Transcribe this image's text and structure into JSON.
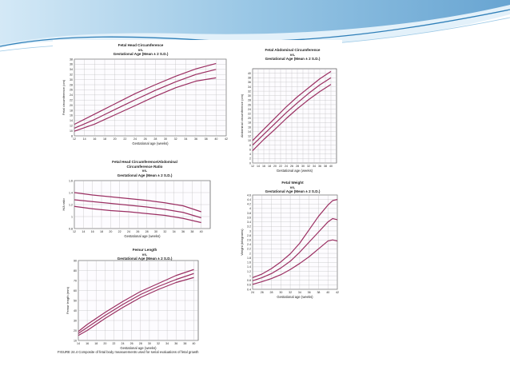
{
  "caption": "FIGURE 24.4 Composite of fetal body measurements used for serial evaluations of fetal growth",
  "chart_data": [
    {
      "id": "hc",
      "type": "line",
      "title": "Fetal Head Circumference\nvs.\nGestational Age (Mean ± 2 S.D.)",
      "xlabel": "Gestational age (weeks)",
      "ylabel": "Fetal circumference (cm)",
      "xlim": [
        12,
        42
      ],
      "ylim": [
        8,
        38
      ],
      "xticks": [
        12,
        14,
        16,
        18,
        20,
        22,
        24,
        26,
        28,
        30,
        32,
        34,
        36,
        38,
        40,
        42
      ],
      "yticks": [
        8,
        10,
        12,
        14,
        16,
        18,
        20,
        22,
        24,
        26,
        28,
        30,
        32,
        34,
        36,
        38
      ],
      "grid": true,
      "line_color": "#9b2f62",
      "series": [
        {
          "x": [
            12,
            16,
            20,
            24,
            28,
            32,
            36,
            40
          ],
          "values": [
            12.5,
            16.5,
            20.5,
            24.5,
            28.0,
            31.3,
            34.2,
            36.3
          ]
        },
        {
          "x": [
            12,
            16,
            20,
            24,
            28,
            32,
            36,
            40
          ],
          "values": [
            11.0,
            14.4,
            18.3,
            22.1,
            25.8,
            29.1,
            32.0,
            34.0
          ]
        },
        {
          "x": [
            12,
            16,
            20,
            24,
            28,
            32,
            36,
            40
          ],
          "values": [
            9.8,
            12.6,
            16.2,
            19.8,
            23.5,
            26.8,
            29.4,
            30.7
          ]
        }
      ]
    },
    {
      "id": "ac",
      "type": "line",
      "title": "Fetal Abdominal Circumference\nvs.\nGestational Age (Mean ± 2 S.D.)",
      "xlabel": "Gestational age (weeks)",
      "ylabel": "Abdominal circumference (cm)",
      "xlim": [
        12,
        42
      ],
      "ylim": [
        0,
        42
      ],
      "xticks": [
        12,
        14,
        16,
        18,
        20,
        22,
        24,
        26,
        28,
        30,
        32,
        34,
        36,
        38,
        40
      ],
      "yticks": [
        0,
        2,
        4,
        6,
        8,
        10,
        12,
        14,
        16,
        18,
        20,
        22,
        24,
        26,
        28,
        30,
        32,
        34,
        36,
        38,
        40
      ],
      "grid": true,
      "line_color": "#9b2f62",
      "series": [
        {
          "x": [
            12,
            16,
            20,
            24,
            28,
            32,
            36,
            40
          ],
          "values": [
            10.0,
            15.0,
            20.0,
            25.0,
            29.5,
            33.5,
            37.5,
            40.8
          ]
        },
        {
          "x": [
            12,
            16,
            20,
            24,
            28,
            32,
            36,
            40
          ],
          "values": [
            8.0,
            12.8,
            17.6,
            22.4,
            26.8,
            31.0,
            34.8,
            38.0
          ]
        },
        {
          "x": [
            12,
            16,
            20,
            24,
            28,
            32,
            36,
            40
          ],
          "values": [
            5.5,
            10.5,
            15.0,
            19.8,
            24.2,
            28.2,
            31.8,
            35.0
          ]
        }
      ]
    },
    {
      "id": "ratio",
      "type": "line",
      "title": "Fetal Head Circumference/Abdominal\nCircumference Ratio\nvs.\nGestational Age (Mean ± 2 S.D.)",
      "xlabel": "Gestational age (weeks)",
      "ylabel": "H/A ratio",
      "xlim": [
        12,
        42
      ],
      "ylim": [
        0.8,
        1.6
      ],
      "xticks": [
        12,
        14,
        16,
        18,
        20,
        22,
        24,
        26,
        28,
        30,
        32,
        34,
        36,
        38,
        40
      ],
      "yticks": [
        0.8,
        1.0,
        1.2,
        1.4,
        1.6
      ],
      "grid": true,
      "line_color": "#9b2f62",
      "series": [
        {
          "x": [
            12,
            16,
            20,
            24,
            28,
            32,
            36,
            40
          ],
          "values": [
            1.4,
            1.36,
            1.33,
            1.3,
            1.27,
            1.23,
            1.18,
            1.08
          ]
        },
        {
          "x": [
            12,
            16,
            20,
            24,
            28,
            32,
            36,
            40
          ],
          "values": [
            1.28,
            1.25,
            1.22,
            1.19,
            1.16,
            1.12,
            1.07,
            0.98
          ]
        },
        {
          "x": [
            12,
            16,
            20,
            24,
            28,
            32,
            36,
            40
          ],
          "values": [
            1.17,
            1.13,
            1.1,
            1.08,
            1.05,
            1.02,
            0.97,
            0.9
          ]
        }
      ]
    },
    {
      "id": "weight",
      "type": "line",
      "title": "Fetal Weight\nvs.\nGestational Age (Mean ± 2 S.D.)",
      "xlabel": "Gestational age (weeks)",
      "ylabel": "Weight (kilograms)",
      "xlim": [
        24,
        42
      ],
      "ylim": [
        0.4,
        4.6
      ],
      "xticks": [
        24,
        26,
        28,
        30,
        32,
        34,
        36,
        38,
        40,
        42
      ],
      "yticks": [
        0.4,
        0.6,
        0.8,
        1.0,
        1.2,
        1.4,
        1.6,
        1.8,
        2.0,
        2.2,
        2.4,
        2.6,
        2.8,
        3.0,
        3.2,
        3.4,
        3.6,
        3.8,
        4.0,
        4.2,
        4.4,
        4.6
      ],
      "grid": true,
      "line_color": "#9b2f62",
      "series": [
        {
          "x": [
            24,
            26,
            28,
            30,
            32,
            34,
            36,
            38,
            40,
            41,
            42
          ],
          "values": [
            0.92,
            1.08,
            1.32,
            1.62,
            1.98,
            2.45,
            3.05,
            3.65,
            4.15,
            4.35,
            4.4
          ]
        },
        {
          "x": [
            24,
            26,
            28,
            30,
            32,
            34,
            36,
            38,
            40,
            41,
            42
          ],
          "values": [
            0.78,
            0.92,
            1.1,
            1.35,
            1.65,
            2.05,
            2.5,
            2.95,
            3.4,
            3.55,
            3.5
          ]
        },
        {
          "x": [
            24,
            26,
            28,
            30,
            32,
            34,
            36,
            38,
            40,
            41,
            42
          ],
          "values": [
            0.62,
            0.74,
            0.88,
            1.05,
            1.28,
            1.55,
            1.85,
            2.2,
            2.55,
            2.6,
            2.55
          ]
        }
      ]
    },
    {
      "id": "fl",
      "type": "line",
      "title": "Femur Length\nvs.\nGestational Age (Mean ± 2 S.D.)",
      "xlabel": "Gestational age (weeks)",
      "ylabel": "Femur length (mm)",
      "xlim": [
        14,
        41
      ],
      "ylim": [
        10,
        90
      ],
      "xticks": [
        14,
        16,
        18,
        20,
        22,
        24,
        26,
        28,
        30,
        32,
        34,
        36,
        38,
        40
      ],
      "yticks": [
        10,
        20,
        30,
        40,
        50,
        60,
        70,
        80,
        90
      ],
      "grid": true,
      "line_color": "#9b2f62",
      "series": [
        {
          "x": [
            14,
            16,
            20,
            24,
            28,
            32,
            36,
            40
          ],
          "values": [
            19,
            26,
            38,
            49,
            59,
            67,
            75,
            81
          ]
        },
        {
          "x": [
            14,
            16,
            20,
            24,
            28,
            32,
            36,
            40
          ],
          "values": [
            17,
            23,
            35,
            46,
            56,
            64,
            71,
            77
          ]
        },
        {
          "x": [
            14,
            16,
            20,
            24,
            28,
            32,
            36,
            40
          ],
          "values": [
            15,
            20,
            32,
            43,
            53,
            61,
            68,
            73
          ]
        }
      ]
    }
  ]
}
